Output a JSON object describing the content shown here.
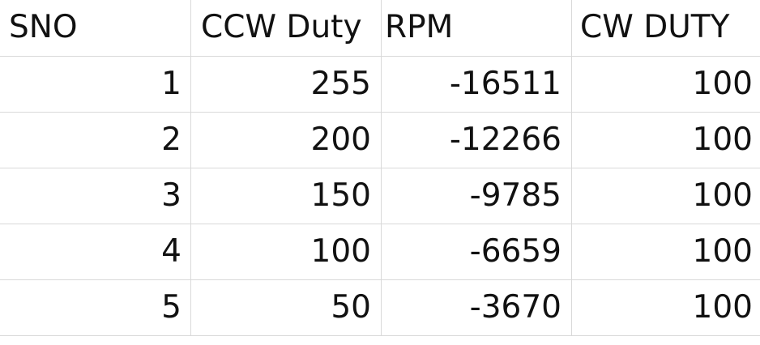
{
  "table": {
    "headers": [
      "SNO",
      "CCW Duty",
      "RPM",
      "CW DUTY"
    ],
    "rows": [
      [
        "1",
        "255",
        "-16511",
        "100"
      ],
      [
        "2",
        "200",
        "-12266",
        "100"
      ],
      [
        "3",
        "150",
        "-9785",
        "100"
      ],
      [
        "4",
        "100",
        "-6659",
        "100"
      ],
      [
        "5",
        "50",
        "-3670",
        "100"
      ]
    ]
  },
  "colors": {
    "gridline": "#d9d9d9",
    "text": "#111111",
    "background": "#ffffff"
  }
}
